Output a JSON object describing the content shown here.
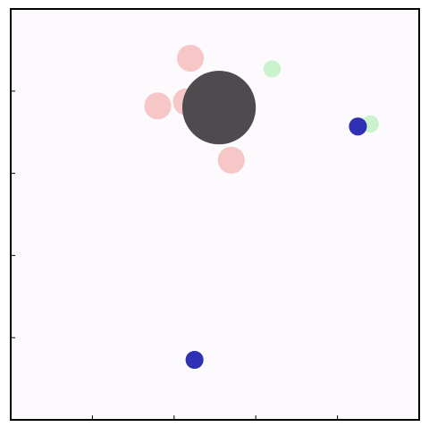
{
  "chart_data": {
    "type": "scatter",
    "title": "",
    "xlabel": "",
    "ylabel": "",
    "xlim": [
      0,
      5
    ],
    "ylim": [
      0,
      5
    ],
    "grid": false,
    "legend": false,
    "colors": {
      "plot_background": "#fdfafd",
      "axes": "#000000",
      "pink": "#f4b6b6",
      "dark_gray": "#4d4b4d",
      "light_green": "#bff0c4",
      "dark_blue": "#2525b0"
    },
    "series": [
      {
        "color": "#f4b6b6",
        "alpha": 0.75,
        "points": [
          {
            "x": 2.2,
            "y": 4.4,
            "r": 0.165
          },
          {
            "x": 1.8,
            "y": 3.82,
            "r": 0.165
          },
          {
            "x": 2.15,
            "y": 3.87,
            "r": 0.165
          },
          {
            "x": 2.7,
            "y": 3.16,
            "r": 0.165
          }
        ]
      },
      {
        "color": "#4d4b4d",
        "alpha": 1.0,
        "points": [
          {
            "x": 2.55,
            "y": 3.8,
            "r": 0.45
          }
        ]
      },
      {
        "color": "#bff0c4",
        "alpha": 0.85,
        "points": [
          {
            "x": 3.2,
            "y": 4.27,
            "r": 0.105
          },
          {
            "x": 4.4,
            "y": 3.6,
            "r": 0.105
          }
        ]
      },
      {
        "color": "#2525b0",
        "alpha": 0.95,
        "points": [
          {
            "x": 4.25,
            "y": 3.57,
            "r": 0.11
          },
          {
            "x": 2.25,
            "y": 0.73,
            "r": 0.11
          }
        ]
      }
    ]
  }
}
